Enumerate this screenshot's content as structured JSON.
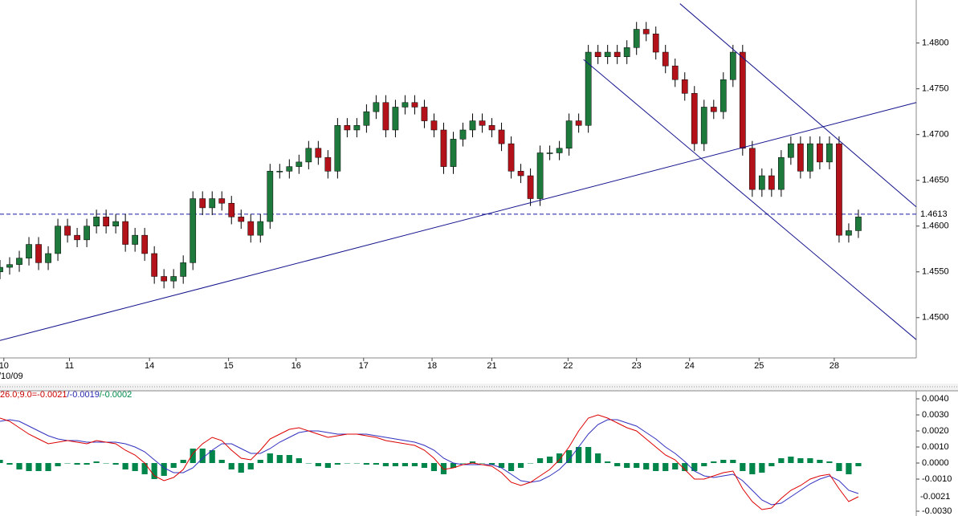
{
  "chart_data": [
    {
      "type": "candlestick",
      "x": [
        0,
        1,
        2,
        3,
        4,
        5,
        6,
        7,
        8,
        9,
        10,
        11,
        12,
        13,
        14,
        15,
        16,
        17,
        18,
        19,
        20,
        21,
        22,
        23,
        24,
        25,
        26,
        27,
        28,
        29,
        30,
        31,
        32,
        33,
        34,
        35,
        36,
        37,
        38,
        39,
        40,
        41,
        42,
        43,
        44,
        45,
        46,
        47,
        48,
        49,
        50,
        51,
        52,
        53,
        54,
        55,
        56,
        57,
        58,
        59,
        60,
        61,
        62,
        63,
        64,
        65,
        66,
        67,
        68,
        69,
        70,
        71,
        72,
        73,
        74,
        75,
        76,
        77,
        78,
        79,
        80,
        81,
        82,
        83,
        84,
        85,
        86,
        87,
        88,
        89
      ],
      "open": [
        1.455,
        1.4555,
        1.4558,
        1.4565,
        1.458,
        1.456,
        1.457,
        1.46,
        1.459,
        1.4585,
        1.46,
        1.461,
        1.46,
        1.4605,
        1.458,
        1.459,
        1.457,
        1.4545,
        1.454,
        1.4545,
        1.456,
        1.463,
        1.462,
        1.463,
        1.4625,
        1.461,
        1.4605,
        1.459,
        1.4605,
        1.466,
        1.466,
        1.4665,
        1.467,
        1.4685,
        1.4675,
        1.466,
        1.471,
        1.4705,
        1.471,
        1.4725,
        1.4735,
        1.4705,
        1.473,
        1.4735,
        1.473,
        1.4715,
        1.4705,
        1.4665,
        1.4695,
        1.4705,
        1.4715,
        1.471,
        1.4705,
        1.469,
        1.466,
        1.4655,
        1.463,
        1.468,
        1.468,
        1.4685,
        1.4715,
        1.471,
        1.479,
        1.4785,
        1.479,
        1.4785,
        1.4795,
        1.4815,
        1.481,
        1.479,
        1.4775,
        1.476,
        1.4745,
        1.469,
        1.473,
        1.4725,
        1.476,
        1.479,
        1.4685,
        1.464,
        1.4655,
        1.464,
        1.4675,
        1.469,
        1.466,
        1.469,
        1.467,
        1.469,
        1.459,
        1.4595
      ],
      "high": [
        1.4563,
        1.4566,
        1.4573,
        1.4588,
        1.4588,
        1.4578,
        1.4608,
        1.4608,
        1.4598,
        1.4608,
        1.4618,
        1.4618,
        1.4613,
        1.4613,
        1.4598,
        1.4598,
        1.4578,
        1.4553,
        1.4553,
        1.4568,
        1.4638,
        1.4638,
        1.4638,
        1.4638,
        1.4633,
        1.4618,
        1.4613,
        1.4613,
        1.4668,
        1.4668,
        1.4673,
        1.4678,
        1.4693,
        1.4693,
        1.4683,
        1.4718,
        1.4718,
        1.4718,
        1.4733,
        1.4743,
        1.4743,
        1.4738,
        1.4743,
        1.4743,
        1.4738,
        1.4723,
        1.4713,
        1.4703,
        1.4713,
        1.4723,
        1.4723,
        1.4718,
        1.4713,
        1.4698,
        1.4668,
        1.4663,
        1.4688,
        1.4688,
        1.4693,
        1.4723,
        1.4723,
        1.4798,
        1.4798,
        1.4798,
        1.4798,
        1.4803,
        1.4823,
        1.4823,
        1.4818,
        1.4798,
        1.4783,
        1.4768,
        1.4753,
        1.4738,
        1.4738,
        1.4768,
        1.4798,
        1.4798,
        1.4693,
        1.4663,
        1.4663,
        1.4683,
        1.4698,
        1.4698,
        1.4698,
        1.4698,
        1.4698,
        1.4698,
        1.4603,
        1.4618
      ],
      "low": [
        1.4542,
        1.4547,
        1.455,
        1.4557,
        1.4552,
        1.4552,
        1.4562,
        1.4582,
        1.4577,
        1.4577,
        1.4592,
        1.4592,
        1.4592,
        1.4572,
        1.4572,
        1.4562,
        1.4537,
        1.4532,
        1.4532,
        1.4537,
        1.4552,
        1.4612,
        1.4612,
        1.4617,
        1.4602,
        1.4597,
        1.4582,
        1.4582,
        1.4597,
        1.4652,
        1.4652,
        1.4657,
        1.4662,
        1.4667,
        1.4652,
        1.4652,
        1.4697,
        1.4697,
        1.4702,
        1.4717,
        1.4697,
        1.4697,
        1.4722,
        1.4722,
        1.4707,
        1.4697,
        1.4657,
        1.4657,
        1.4687,
        1.4697,
        1.4702,
        1.4697,
        1.4682,
        1.4652,
        1.4647,
        1.4622,
        1.4622,
        1.4672,
        1.4672,
        1.4677,
        1.4702,
        1.4702,
        1.4777,
        1.4777,
        1.4777,
        1.4777,
        1.4787,
        1.4802,
        1.4782,
        1.4767,
        1.4752,
        1.4737,
        1.4682,
        1.4682,
        1.4717,
        1.4717,
        1.4752,
        1.4677,
        1.4632,
        1.4632,
        1.4632,
        1.4632,
        1.4667,
        1.4652,
        1.4652,
        1.4662,
        1.4662,
        1.4582,
        1.4582,
        1.4587
      ],
      "close": [
        1.4555,
        1.4558,
        1.4565,
        1.458,
        1.456,
        1.457,
        1.46,
        1.459,
        1.4585,
        1.46,
        1.461,
        1.46,
        1.4605,
        1.458,
        1.459,
        1.457,
        1.4545,
        1.454,
        1.4545,
        1.456,
        1.463,
        1.462,
        1.463,
        1.4625,
        1.461,
        1.4605,
        1.459,
        1.4605,
        1.466,
        1.466,
        1.4665,
        1.467,
        1.4685,
        1.4675,
        1.466,
        1.471,
        1.4705,
        1.471,
        1.4725,
        1.4735,
        1.4705,
        1.473,
        1.4735,
        1.473,
        1.4715,
        1.4705,
        1.4665,
        1.4695,
        1.4705,
        1.4715,
        1.471,
        1.4705,
        1.469,
        1.466,
        1.4655,
        1.463,
        1.468,
        1.468,
        1.4685,
        1.4715,
        1.471,
        1.479,
        1.4785,
        1.479,
        1.4785,
        1.4795,
        1.4815,
        1.481,
        1.479,
        1.4775,
        1.476,
        1.4745,
        1.469,
        1.473,
        1.4725,
        1.476,
        1.479,
        1.4685,
        1.464,
        1.4655,
        1.464,
        1.4675,
        1.469,
        1.466,
        1.469,
        1.467,
        1.469,
        1.459,
        1.4595,
        1.461
      ],
      "up_color": "#1e7a3c",
      "down_color": "#b3121a",
      "wick_color": "#000000",
      "xlim": [
        0,
        95
      ],
      "xticks": [
        {
          "value": 0.4,
          "label": "10"
        },
        {
          "value": 7.2,
          "label": "11"
        },
        {
          "value": 15.5,
          "label": "14"
        },
        {
          "value": 23.7,
          "label": "15"
        },
        {
          "value": 30.7,
          "label": "16"
        },
        {
          "value": 37.7,
          "label": "17"
        },
        {
          "value": 44.8,
          "label": "18"
        },
        {
          "value": 51,
          "label": "21"
        },
        {
          "value": 58.9,
          "label": "22"
        },
        {
          "value": 66,
          "label": "23"
        },
        {
          "value": 71.5,
          "label": "24"
        },
        {
          "value": 78.7,
          "label": "25"
        },
        {
          "value": 86.5,
          "label": "28"
        }
      ],
      "date_label": "/10/09",
      "ylim": [
        1.4456,
        1.4847
      ],
      "yticks": [
        {
          "value": 1.48,
          "label": "1.4800"
        },
        {
          "value": 1.475,
          "label": "1.4750"
        },
        {
          "value": 1.47,
          "label": "1.4700"
        },
        {
          "value": 1.465,
          "label": "1.4650"
        },
        {
          "value": 1.46,
          "label": "1.4600"
        },
        {
          "value": 1.455,
          "label": "1.4550"
        },
        {
          "value": 1.45,
          "label": "1.4500"
        }
      ],
      "current_price": 1.4613,
      "current_color": "#1a1aa6",
      "trendline_color": "#14148c",
      "trendlines": [
        {
          "x": [
            0,
            95
          ],
          "y": [
            1.4475,
            1.4735
          ]
        },
        {
          "x": [
            70.5,
            95
          ],
          "y": [
            1.4843,
            1.4621
          ]
        },
        {
          "x": [
            60.5,
            95
          ],
          "y": [
            1.4782,
            1.4476
          ]
        }
      ]
    },
    {
      "type": "macd",
      "legend": [
        {
          "text": "26.0;9.0=-0.0021",
          "color": "#cc0000"
        },
        {
          "text": "/-0.0019",
          "color": "#2a2ab0"
        },
        {
          "text": "/-0.0002",
          "color": "#008a4a"
        }
      ],
      "macd_color": "#dd0000",
      "signal_color": "#3030c0",
      "hist_color": "#00864a",
      "macd": [
        0.0028,
        0.0026,
        0.0022,
        0.0018,
        0.0015,
        0.0012,
        0.0013,
        0.0014,
        0.0013,
        0.0012,
        0.0014,
        0.0013,
        0.0012,
        0.0008,
        0.0005,
        0,
        -0.0008,
        -0.0011,
        -0.0009,
        -0.0004,
        0.0006,
        0.0012,
        0.0016,
        0.0014,
        0.0008,
        0.0003,
        0.0002,
        0.0008,
        0.0015,
        0.0018,
        0.0021,
        0.0022,
        0.002,
        0.0018,
        0.0016,
        0.0017,
        0.0018,
        0.0018,
        0.0017,
        0.0016,
        0.0014,
        0.0013,
        0.0012,
        0.0011,
        0.0008,
        0.0003,
        -0.0004,
        -0.0003,
        -0.0001,
        0,
        -0.0001,
        -0.0002,
        -0.0006,
        -0.0012,
        -0.0014,
        -0.0012,
        -0.0008,
        -0.0004,
        0.0002,
        0.001,
        0.002,
        0.0028,
        0.003,
        0.0028,
        0.0025,
        0.0022,
        0.002,
        0.0015,
        0.001,
        0.0005,
        0.0002,
        -0.0004,
        -0.001,
        -0.001,
        -0.0008,
        -0.0006,
        -0.0005,
        -0.0016,
        -0.0024,
        -0.0029,
        -0.0028,
        -0.0022,
        -0.0017,
        -0.0014,
        -0.001,
        -0.0008,
        -0.0007,
        -0.0016,
        -0.0024,
        -0.0021
      ],
      "signal": [
        0.0026,
        0.0027,
        0.0026,
        0.0023,
        0.002,
        0.0017,
        0.0015,
        0.0014,
        0.0014,
        0.0013,
        0.0013,
        0.0013,
        0.0013,
        0.0012,
        0.001,
        0.0007,
        0.0002,
        -0.0003,
        -0.0006,
        -0.0006,
        -0.0003,
        0.0003,
        0.0008,
        0.0012,
        0.0012,
        0.0009,
        0.0006,
        0.0006,
        0.0009,
        0.0013,
        0.0016,
        0.0019,
        0.002,
        0.002,
        0.0019,
        0.0018,
        0.0018,
        0.0018,
        0.0018,
        0.0017,
        0.0016,
        0.0015,
        0.0014,
        0.0013,
        0.0011,
        0.0008,
        0.0003,
        0,
        -0.0001,
        -0.0001,
        -0.0001,
        -0.0001,
        -0.0003,
        -0.0007,
        -0.0011,
        -0.0012,
        -0.0011,
        -0.0008,
        -0.0004,
        0.0002,
        0.001,
        0.0018,
        0.0024,
        0.0027,
        0.0027,
        0.0025,
        0.0023,
        0.0019,
        0.0015,
        0.001,
        0.0006,
        0.0001,
        -0.0005,
        -0.0008,
        -0.0009,
        -0.0008,
        -0.0007,
        -0.0011,
        -0.0017,
        -0.0023,
        -0.0026,
        -0.0025,
        -0.0021,
        -0.0017,
        -0.0013,
        -0.001,
        -0.0008,
        -0.0011,
        -0.0017,
        -0.0019
      ],
      "histogram": [
        0.0002,
        -0.0001,
        -0.0004,
        -0.0005,
        -0.0005,
        -0.0005,
        -0.0002,
        0,
        -0.0001,
        -0.0001,
        0.0001,
        0,
        -0.0001,
        -0.0004,
        -0.0005,
        -0.0007,
        -0.001,
        -0.0008,
        -0.0003,
        0.0002,
        0.0009,
        0.0009,
        0.0008,
        0.0002,
        -0.0004,
        -0.0006,
        -0.0004,
        0.0002,
        0.0006,
        0.0005,
        0.0005,
        0.0003,
        0,
        -0.0002,
        -0.0003,
        -0.0001,
        0,
        0,
        -0.0001,
        -0.0001,
        -0.0002,
        -0.0002,
        -0.0002,
        -0.0002,
        -0.0003,
        -0.0005,
        -0.0007,
        -0.0003,
        0,
        0.0001,
        0,
        -0.0001,
        -0.0003,
        -0.0005,
        -0.0003,
        0,
        0.0003,
        0.0004,
        0.0006,
        0.0008,
        0.001,
        0.001,
        0.0006,
        0.0001,
        -0.0002,
        -0.0003,
        -0.0003,
        -0.0004,
        -0.0005,
        -0.0005,
        -0.0004,
        -0.0005,
        -0.0005,
        -0.0002,
        0.0001,
        0.0002,
        0.0002,
        -0.0005,
        -0.0007,
        -0.0006,
        -0.0002,
        0.0003,
        0.0004,
        0.0003,
        0.0003,
        0.0002,
        0.0001,
        -0.0005,
        -0.0007,
        -0.0002
      ],
      "ylim": [
        -0.0033,
        0.0045
      ],
      "yticks": [
        {
          "value": 0.004,
          "label": "0.0040"
        },
        {
          "value": 0.003,
          "label": "0.0030"
        },
        {
          "value": 0.002,
          "label": "0.0020"
        },
        {
          "value": 0.001,
          "label": "0.0010"
        },
        {
          "value": 0,
          "label": "0.0000"
        },
        {
          "value": -0.001,
          "label": "-0.0010"
        },
        {
          "value": -0.003,
          "label": "-0.0030"
        }
      ],
      "current_value": -0.0021,
      "current_label": "-0.0021"
    }
  ]
}
